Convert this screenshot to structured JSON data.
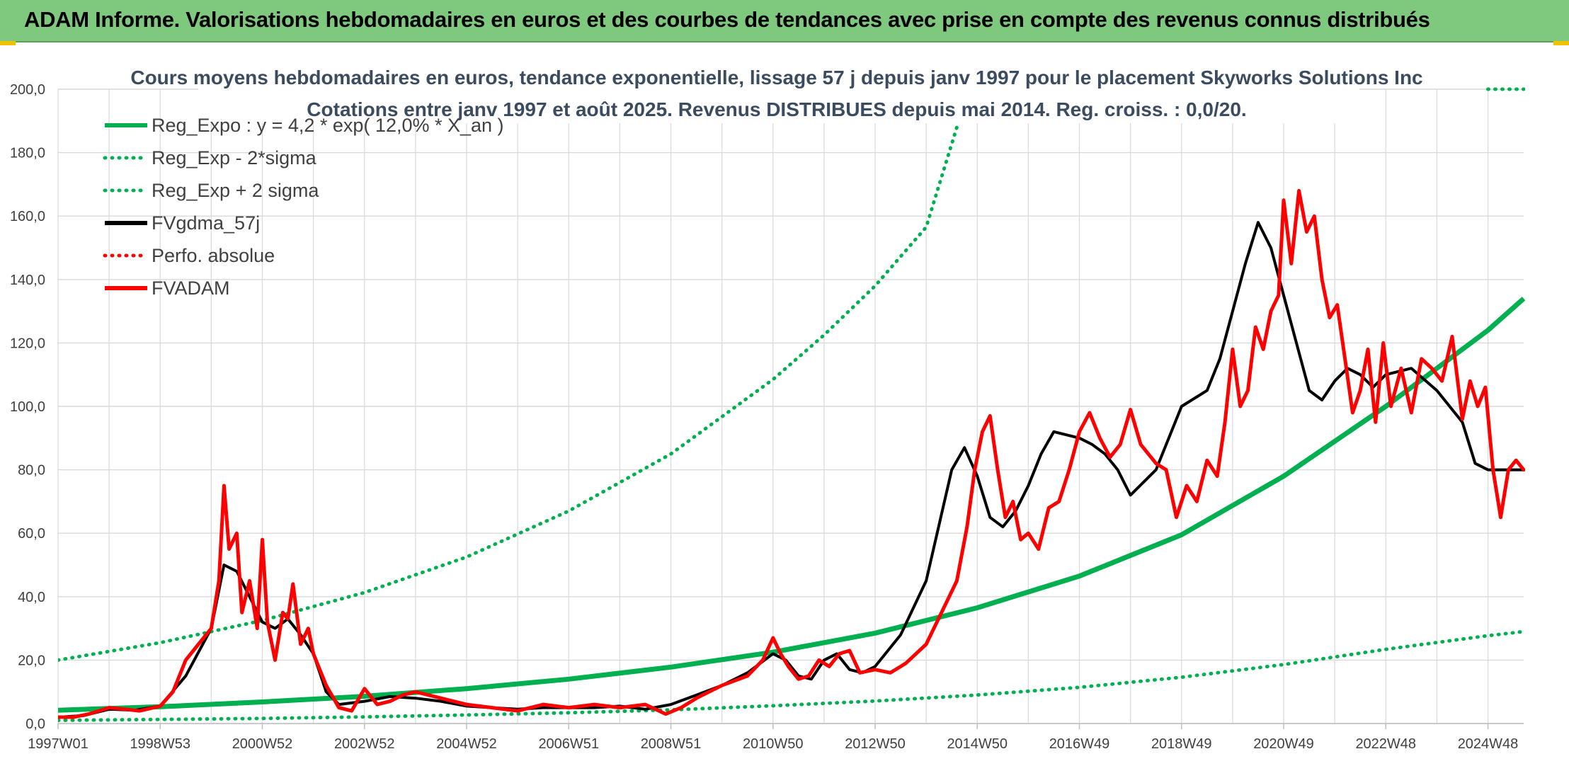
{
  "banner": {
    "title": "ADAM Informe. Valorisations hebdomadaires en euros et des courbes de tendances avec prise en compte des revenus connus distribués"
  },
  "colors": {
    "banner_bg": "#7ec97e",
    "trend_green": "#00b050",
    "smooth_black": "#000000",
    "fvadam_red": "#ff0000",
    "grid": "#d9d9d9",
    "title_text": "#3b4c60"
  },
  "chart_data": {
    "type": "line",
    "title": "Cours moyens hebdomadaires en euros, tendance exponentielle, lissage 57 j depuis janv 1997 pour le placement Skyworks Solutions Inc",
    "subtitle": "Cotations entre janv 1997 et août 2025. Revenus DISTRIBUES depuis mai 2014. Reg. croiss. : 0,0/20.",
    "xlabel": "",
    "ylabel": "",
    "ylim": [
      0,
      200
    ],
    "xlim": [
      1997.0,
      2025.7
    ],
    "grid": true,
    "legend_position": "top-left",
    "yticks": [
      "0,0",
      "20,0",
      "40,0",
      "60,0",
      "80,0",
      "100,0",
      "120,0",
      "140,0",
      "160,0",
      "180,0",
      "200,0"
    ],
    "xticks": [
      {
        "label": "1997W01",
        "x": 1997.0
      },
      {
        "label": "1998W53",
        "x": 1999.0
      },
      {
        "label": "2000W52",
        "x": 2001.0
      },
      {
        "label": "2002W52",
        "x": 2003.0
      },
      {
        "label": "2004W52",
        "x": 2005.0
      },
      {
        "label": "2006W51",
        "x": 2007.0
      },
      {
        "label": "2008W51",
        "x": 2009.0
      },
      {
        "label": "2010W50",
        "x": 2011.0
      },
      {
        "label": "2012W50",
        "x": 2013.0
      },
      {
        "label": "2014W50",
        "x": 2015.0
      },
      {
        "label": "2016W49",
        "x": 2017.0
      },
      {
        "label": "2018W49",
        "x": 2019.0
      },
      {
        "label": "2020W49",
        "x": 2021.0
      },
      {
        "label": "2022W48",
        "x": 2023.0
      },
      {
        "label": "2024W48",
        "x": 2025.0
      }
    ],
    "legend": [
      {
        "name": "Reg_Expo : y = 4,2 * exp( 12,0% *  X_an )",
        "style": "solid",
        "color": "#00b050"
      },
      {
        "name": "Reg_Exp - 2*sigma",
        "style": "dotted",
        "color": "#00b050"
      },
      {
        "name": "Reg_Exp + 2 sigma",
        "style": "dotted",
        "color": "#00b050"
      },
      {
        "name": "FVgdma_57j",
        "style": "solid",
        "color": "#000000"
      },
      {
        "name": "Perfo. absolue",
        "style": "dotted",
        "color": "#ff0000"
      },
      {
        "name": "FVADAM",
        "style": "solid",
        "color": "#ff0000"
      }
    ],
    "series": [
      {
        "id": "reg_expo",
        "x": [
          1997.0,
          1999.0,
          2001.0,
          2003.0,
          2005.0,
          2007.0,
          2009.0,
          2011.0,
          2013.0,
          2015.0,
          2017.0,
          2019.0,
          2021.0,
          2023.0,
          2025.0,
          2025.7
        ],
        "values": [
          4.2,
          5.3,
          6.8,
          8.6,
          11.0,
          14.0,
          17.8,
          22.5,
          28.5,
          36.5,
          46.5,
          59.5,
          78.0,
          100.0,
          124.0,
          134.0
        ]
      },
      {
        "id": "reg_minus",
        "x": [
          1997.0,
          1999.0,
          2001.0,
          2003.0,
          2005.0,
          2007.0,
          2009.0,
          2011.0,
          2013.0,
          2015.0,
          2017.0,
          2019.0,
          2021.0,
          2023.0,
          2025.0,
          2025.7
        ],
        "values": [
          1.0,
          1.3,
          1.6,
          2.1,
          2.7,
          3.4,
          4.3,
          5.6,
          7.1,
          9.0,
          11.4,
          14.6,
          18.6,
          23.4,
          27.7,
          29.0
        ]
      },
      {
        "id": "reg_plus",
        "x": [
          1997.0,
          1999.0,
          2001.0,
          2003.0,
          2005.0,
          2007.0,
          2009.0,
          2011.0,
          2012.0,
          2013.0,
          2014.0,
          2014.6
        ],
        "values": [
          20.0,
          25.5,
          32.5,
          41.3,
          52.5,
          67.0,
          85.0,
          108.5,
          122.5,
          138.0,
          156.5,
          188.0
        ]
      },
      {
        "id": "perfo_abs",
        "x": [
          2025.0,
          2025.7
        ],
        "values": [
          200.0,
          200.0
        ]
      },
      {
        "id": "fvgdma",
        "x": [
          1997.0,
          1997.5,
          1998.0,
          1998.5,
          1999.0,
          1999.5,
          2000.0,
          2000.25,
          2000.5,
          2000.75,
          2001.0,
          2001.25,
          2001.5,
          2001.75,
          2002.0,
          2002.25,
          2002.5,
          2003.0,
          2003.5,
          2004.0,
          2004.5,
          2005.0,
          2005.5,
          2006.0,
          2006.5,
          2007.0,
          2007.5,
          2008.0,
          2008.5,
          2009.0,
          2009.5,
          2010.0,
          2010.5,
          2011.0,
          2011.25,
          2011.5,
          2011.75,
          2012.0,
          2012.25,
          2012.5,
          2012.75,
          2013.0,
          2013.5,
          2014.0,
          2014.5,
          2014.75,
          2015.0,
          2015.25,
          2015.5,
          2015.75,
          2016.0,
          2016.25,
          2016.5,
          2016.75,
          2017.0,
          2017.25,
          2017.5,
          2017.75,
          2018.0,
          2018.5,
          2019.0,
          2019.5,
          2019.75,
          2020.0,
          2020.25,
          2020.5,
          2020.75,
          2021.0,
          2021.25,
          2021.5,
          2021.75,
          2022.0,
          2022.25,
          2022.5,
          2022.75,
          2023.0,
          2023.5,
          2024.0,
          2024.5,
          2024.75,
          2025.0,
          2025.25,
          2025.5,
          2025.7
        ],
        "values": [
          2.0,
          2.5,
          4.5,
          4.2,
          5.5,
          15.0,
          30.0,
          50.0,
          48.0,
          40.0,
          32.0,
          30.0,
          33.0,
          28.0,
          22.0,
          10.0,
          6.0,
          7.0,
          8.5,
          8.0,
          7.0,
          5.5,
          5.0,
          4.5,
          5.0,
          5.0,
          5.0,
          5.5,
          4.5,
          6.0,
          9.0,
          12.0,
          16.0,
          22.0,
          20.0,
          15.0,
          14.0,
          20.0,
          22.0,
          17.0,
          16.0,
          18.0,
          28.0,
          45.0,
          80.0,
          87.0,
          78.0,
          65.0,
          62.0,
          67.0,
          75.0,
          85.0,
          92.0,
          91.0,
          90.0,
          88.0,
          85.0,
          80.0,
          72.0,
          80.0,
          100.0,
          105.0,
          115.0,
          130.0,
          145.0,
          158.0,
          150.0,
          135.0,
          120.0,
          105.0,
          102.0,
          108.0,
          112.0,
          110.0,
          106.0,
          110.0,
          112.0,
          105.0,
          95.0,
          82.0,
          80.0,
          80.0,
          80.0,
          80.0
        ]
      },
      {
        "id": "fvadam",
        "x": [
          1997.0,
          1997.3,
          1997.6,
          1998.0,
          1998.3,
          1998.6,
          1999.0,
          1999.25,
          1999.5,
          1999.75,
          2000.0,
          2000.15,
          2000.25,
          2000.35,
          2000.5,
          2000.6,
          2000.75,
          2000.9,
          2001.0,
          2001.1,
          2001.25,
          2001.4,
          2001.5,
          2001.6,
          2001.75,
          2001.9,
          2002.0,
          2002.25,
          2002.5,
          2002.75,
          2003.0,
          2003.25,
          2003.5,
          2003.75,
          2004.0,
          2004.5,
          2005.0,
          2005.5,
          2006.0,
          2006.5,
          2007.0,
          2007.5,
          2008.0,
          2008.5,
          2008.9,
          2009.2,
          2009.5,
          2010.0,
          2010.5,
          2010.8,
          2011.0,
          2011.15,
          2011.3,
          2011.5,
          2011.7,
          2011.9,
          2012.1,
          2012.3,
          2012.5,
          2012.7,
          2013.0,
          2013.3,
          2013.6,
          2014.0,
          2014.3,
          2014.6,
          2014.8,
          2014.95,
          2015.1,
          2015.25,
          2015.4,
          2015.55,
          2015.7,
          2015.85,
          2016.0,
          2016.2,
          2016.4,
          2016.6,
          2016.8,
          2017.0,
          2017.2,
          2017.4,
          2017.6,
          2017.8,
          2018.0,
          2018.2,
          2018.35,
          2018.5,
          2018.7,
          2018.9,
          2019.1,
          2019.3,
          2019.5,
          2019.7,
          2019.85,
          2020.0,
          2020.15,
          2020.3,
          2020.45,
          2020.6,
          2020.75,
          2020.9,
          2021.0,
          2021.15,
          2021.3,
          2021.45,
          2021.6,
          2021.75,
          2021.9,
          2022.05,
          2022.2,
          2022.35,
          2022.5,
          2022.65,
          2022.8,
          2022.95,
          2023.1,
          2023.3,
          2023.5,
          2023.7,
          2023.9,
          2024.1,
          2024.3,
          2024.5,
          2024.65,
          2024.8,
          2024.95,
          2025.1,
          2025.25,
          2025.4,
          2025.55,
          2025.7
        ],
        "values": [
          2.0,
          2.0,
          3.0,
          5.0,
          4.5,
          4.0,
          5.5,
          10.0,
          20.0,
          25.0,
          30.0,
          45.0,
          75.0,
          55.0,
          60.0,
          35.0,
          45.0,
          30.0,
          58.0,
          32.0,
          20.0,
          35.0,
          33.0,
          44.0,
          25.0,
          30.0,
          22.0,
          12.0,
          5.0,
          4.0,
          11.0,
          6.0,
          7.0,
          9.0,
          10.0,
          8.0,
          6.0,
          5.0,
          4.0,
          6.0,
          5.0,
          6.0,
          5.0,
          6.0,
          3.0,
          5.0,
          8.0,
          12.0,
          15.0,
          20.0,
          27.0,
          22.0,
          18.0,
          14.0,
          15.0,
          20.0,
          18.0,
          22.0,
          23.0,
          16.0,
          17.0,
          16.0,
          19.0,
          25.0,
          35.0,
          45.0,
          62.0,
          80.0,
          92.0,
          97.0,
          80.0,
          65.0,
          70.0,
          58.0,
          60.0,
          55.0,
          68.0,
          70.0,
          80.0,
          92.0,
          98.0,
          90.0,
          84.0,
          88.0,
          99.0,
          88.0,
          85.0,
          82.0,
          80.0,
          65.0,
          75.0,
          70.0,
          83.0,
          78.0,
          95.0,
          118.0,
          100.0,
          105.0,
          125.0,
          118.0,
          130.0,
          135.0,
          165.0,
          145.0,
          168.0,
          155.0,
          160.0,
          140.0,
          128.0,
          132.0,
          115.0,
          98.0,
          105.0,
          118.0,
          95.0,
          120.0,
          100.0,
          112.0,
          98.0,
          115.0,
          112.0,
          108.0,
          122.0,
          96.0,
          108.0,
          100.0,
          106.0,
          80.0,
          65.0,
          80.0,
          83.0,
          80.0
        ]
      }
    ]
  }
}
